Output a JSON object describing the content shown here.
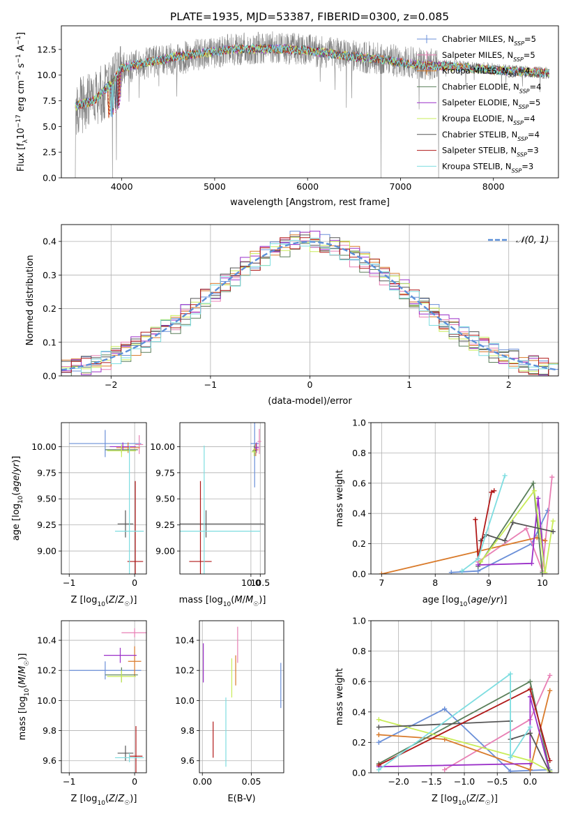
{
  "figure_title": "PLATE=1935, MJD=53387, FIBERID=0300, z=0.085",
  "colors": {
    "Chabrier MILES": "#6a8fd8",
    "Salpeter MILES": "#e87fb4",
    "Kroupa MILES": "#d97a2a",
    "Chabrier ELODIE": "#5a7f5a",
    "Salpeter ELODIE": "#9a2fc8",
    "Kroupa ELODIE": "#c9ec58",
    "Chabrier STELIB": "#555555",
    "Salpeter STELIB": "#b01818",
    "Kroupa STELIB": "#7ddde0",
    "spectrum": "#808080",
    "gaussian": "#5b8fd8",
    "grid": "#b0b0b0"
  },
  "legend": [
    {
      "model": "Chabrier MILES",
      "prefix": "Chabrier MILES, N",
      "sub": "SSP",
      "suffix": "=5"
    },
    {
      "model": "Salpeter MILES",
      "prefix": "Salpeter MILES, N",
      "sub": "SSP",
      "suffix": "=5"
    },
    {
      "model": "Kroupa MILES",
      "prefix": "Kroupa MILES, N",
      "sub": "SSP",
      "suffix": "=4"
    },
    {
      "model": "Chabrier ELODIE",
      "prefix": "Chabrier ELODIE, N",
      "sub": "SSP",
      "suffix": "=4"
    },
    {
      "model": "Salpeter ELODIE",
      "prefix": "Salpeter ELODIE, N",
      "sub": "SSP",
      "suffix": "=5"
    },
    {
      "model": "Kroupa ELODIE",
      "prefix": "Kroupa ELODIE, N",
      "sub": "SSP",
      "suffix": "=4"
    },
    {
      "model": "Chabrier STELIB",
      "prefix": "Chabrier STELIB, N",
      "sub": "SSP",
      "suffix": "=4"
    },
    {
      "model": "Salpeter STELIB",
      "prefix": "Salpeter STELIB, N",
      "sub": "SSP",
      "suffix": "=3"
    },
    {
      "model": "Kroupa STELIB",
      "prefix": "Kroupa STELIB, N",
      "sub": "SSP",
      "suffix": "=3"
    }
  ],
  "chart_data": [
    {
      "id": "spectrum",
      "type": "line",
      "xlabel": "wavelength [Angstrom, rest frame]",
      "ylabel": "Flux [f_λ10^-17 erg cm^-2 s^-1 A^-1]",
      "xlim": [
        3350,
        8700
      ],
      "ylim": [
        0,
        14.8
      ],
      "xticks": [
        4000,
        5000,
        6000,
        7000,
        8000
      ],
      "yticks": [
        0.0,
        2.5,
        5.0,
        7.5,
        10.0,
        12.5
      ],
      "grid": false,
      "legend_position": "top-right",
      "observed_flux_profile": {
        "x": [
          3500,
          3700,
          3900,
          4000,
          4300,
          4600,
          4900,
          5200,
          5600,
          6000,
          6400,
          6800,
          7200,
          7600,
          8000,
          8400,
          8600
        ],
        "y": [
          6.8,
          7.6,
          9.0,
          10.6,
          11.2,
          11.6,
          12.1,
          12.5,
          12.7,
          12.5,
          11.9,
          11.6,
          11.1,
          10.9,
          10.6,
          10.3,
          10.2
        ]
      },
      "model_flux_profile": {
        "x": [
          3500,
          3700,
          3900,
          4000,
          4300,
          4600,
          4900,
          5200,
          5600,
          6000,
          6400,
          6800,
          7200,
          7600,
          8000,
          8400,
          8600
        ],
        "y": [
          7.0,
          7.5,
          9.3,
          10.7,
          11.3,
          11.8,
          12.2,
          12.5,
          12.6,
          12.4,
          11.9,
          11.5,
          11.0,
          10.8,
          10.5,
          10.3,
          10.2
        ]
      },
      "bad_pixel_drops": [
        3500,
        3900,
        6790,
        7410
      ]
    },
    {
      "id": "residuals",
      "type": "histogram",
      "xlabel": "(data-model)/error",
      "ylabel": "Normed distribution",
      "xlim": [
        -2.5,
        2.5
      ],
      "ylim": [
        0,
        0.45
      ],
      "xticks": [
        -2,
        -1,
        0,
        1,
        2
      ],
      "yticks": [
        0.0,
        0.1,
        0.2,
        0.3,
        0.4
      ],
      "grid": true,
      "legend_position": "top-right",
      "reference_curve": {
        "label": "N(0,1)",
        "mu": 0,
        "sigma": 1
      },
      "bin_width": 0.1,
      "series": [
        {
          "model": "Chabrier MILES",
          "scale": 1.02,
          "noise_seed": 3
        },
        {
          "model": "Salpeter MILES",
          "scale": 0.98,
          "noise_seed": 7
        },
        {
          "model": "Kroupa MILES",
          "scale": 1.0,
          "noise_seed": 11
        },
        {
          "model": "Chabrier ELODIE",
          "scale": 0.97,
          "noise_seed": 13
        },
        {
          "model": "Salpeter ELODIE",
          "scale": 1.01,
          "noise_seed": 17
        },
        {
          "model": "Kroupa ELODIE",
          "scale": 0.99,
          "noise_seed": 19
        },
        {
          "model": "Chabrier STELIB",
          "scale": 1.0,
          "noise_seed": 23
        },
        {
          "model": "Salpeter STELIB",
          "scale": 0.99,
          "noise_seed": 29
        },
        {
          "model": "Kroupa STELIB",
          "scale": 0.98,
          "noise_seed": 31
        }
      ]
    },
    {
      "id": "age_vs_Z",
      "type": "errorbar",
      "xlabel": "Z [log10(Z/Z☉)]",
      "ylabel": "age  [log10(age/yr)]",
      "xlim": [
        -1.12,
        0.18
      ],
      "ylim": [
        8.78,
        10.23
      ],
      "xticks": [
        -1,
        0
      ],
      "yticks": [
        9.0,
        9.25,
        9.5,
        9.75,
        10.0
      ],
      "grid": true,
      "points": [
        {
          "model": "Chabrier MILES",
          "x": -0.45,
          "xerr": 0.55,
          "y": 10.03,
          "yerr": 0.13
        },
        {
          "model": "Salpeter MILES",
          "x": 0.07,
          "xerr": 0.06,
          "y": 10.02,
          "yerr": 0.09
        },
        {
          "model": "Kroupa MILES",
          "x": -0.1,
          "xerr": 0.18,
          "y": 9.99,
          "yerr": 0.05
        },
        {
          "model": "Chabrier ELODIE",
          "x": -0.2,
          "xerr": 0.25,
          "y": 9.97,
          "yerr": 0.03
        },
        {
          "model": "Salpeter ELODIE",
          "x": -0.18,
          "xerr": 0.2,
          "y": 10.0,
          "yerr": 0.04
        },
        {
          "model": "Kroupa ELODIE",
          "x": -0.2,
          "xerr": 0.22,
          "y": 9.96,
          "yerr": 0.06
        },
        {
          "model": "Chabrier STELIB",
          "x": -0.14,
          "xerr": 0.12,
          "y": 9.26,
          "yerr": 0.13
        },
        {
          "model": "Salpeter STELIB",
          "x": 0.01,
          "xerr": 0.12,
          "y": 8.9,
          "yerr": 0.77
        },
        {
          "model": "Kroupa STELIB",
          "x": -0.08,
          "xerr": 0.22,
          "y": 9.19,
          "yerr": 0.82
        }
      ]
    },
    {
      "id": "age_vs_mass",
      "type": "errorbar",
      "xlabel": "mass [log10(M/M☉)]",
      "ylabel": "",
      "xlim": [
        6.2,
        10.75
      ],
      "ylim": [
        8.78,
        10.23
      ],
      "xticks": [
        10.0,
        10.5
      ],
      "yticks": [
        9.0,
        9.25,
        9.5,
        9.75,
        10.0
      ],
      "grid": true,
      "points": [
        {
          "model": "Chabrier MILES",
          "x": 10.2,
          "xerr": 0.22,
          "y": 10.03,
          "yerr": 0.42
        },
        {
          "model": "Salpeter MILES",
          "x": 10.45,
          "xerr": 0.1,
          "y": 10.05,
          "yerr": 0.12
        },
        {
          "model": "Kroupa MILES",
          "x": 10.26,
          "xerr": 0.14,
          "y": 9.97,
          "yerr": 0.06
        },
        {
          "model": "Chabrier ELODIE",
          "x": 10.18,
          "xerr": 0.1,
          "y": 9.96,
          "yerr": 0.05
        },
        {
          "model": "Salpeter ELODIE",
          "x": 10.3,
          "xerr": 0.12,
          "y": 9.99,
          "yerr": 0.05
        },
        {
          "model": "Kroupa ELODIE",
          "x": 10.17,
          "xerr": 0.13,
          "y": 9.95,
          "yerr": 0.04
        },
        {
          "model": "Chabrier STELIB",
          "x": 7.6,
          "xerr": 3.1,
          "y": 9.26,
          "yerr": 0.13
        },
        {
          "model": "Salpeter STELIB",
          "x": 7.3,
          "xerr": 0.6,
          "y": 8.9,
          "yerr": 0.77
        },
        {
          "model": "Kroupa STELIB",
          "x": 7.5,
          "xerr": 3.0,
          "y": 9.19,
          "yerr": 0.82
        }
      ]
    },
    {
      "id": "weight_vs_age",
      "type": "line",
      "xlabel": "age  [log10(age/yr)]",
      "ylabel": "mass weight",
      "xlim": [
        6.8,
        10.3
      ],
      "ylim": [
        0,
        1
      ],
      "xticks": [
        7,
        8,
        9,
        10
      ],
      "yticks": [
        0.0,
        0.2,
        0.4,
        0.6,
        0.8,
        1.0
      ],
      "grid": true,
      "series": [
        {
          "model": "Chabrier MILES",
          "points": [
            [
              8.3,
              0.01
            ],
            [
              8.8,
              0.02
            ],
            [
              9.8,
              0.2
            ],
            [
              10.1,
              0.42
            ]
          ]
        },
        {
          "model": "Salpeter MILES",
          "points": [
            [
              8.8,
              0.08
            ],
            [
              9.7,
              0.3
            ],
            [
              10.0,
              0.02
            ],
            [
              10.18,
              0.64
            ]
          ]
        },
        {
          "model": "Kroupa MILES",
          "points": [
            [
              7.0,
              0.0
            ],
            [
              8.8,
              0.15
            ],
            [
              9.9,
              0.24
            ],
            [
              10.05,
              0.22
            ]
          ]
        },
        {
          "model": "Chabrier ELODIE",
          "points": [
            [
              8.8,
              0.05
            ],
            [
              9.83,
              0.6
            ],
            [
              10.0,
              0.01
            ]
          ]
        },
        {
          "model": "Salpeter ELODIE",
          "points": [
            [
              8.8,
              0.06
            ],
            [
              9.8,
              0.07
            ],
            [
              9.92,
              0.5
            ],
            [
              10.05,
              0.0
            ]
          ]
        },
        {
          "model": "Kroupa ELODIE",
          "points": [
            [
              8.85,
              0.08
            ],
            [
              9.85,
              0.55
            ],
            [
              10.05,
              0.01
            ],
            [
              10.2,
              0.35
            ]
          ]
        },
        {
          "model": "Chabrier STELIB",
          "points": [
            [
              8.85,
              0.22
            ],
            [
              8.95,
              0.26
            ],
            [
              9.3,
              0.22
            ],
            [
              9.45,
              0.34
            ],
            [
              10.2,
              0.28
            ]
          ]
        },
        {
          "model": "Salpeter STELIB",
          "points": [
            [
              8.75,
              0.36
            ],
            [
              8.8,
              0.1
            ],
            [
              9.05,
              0.54
            ],
            [
              9.1,
              0.55
            ]
          ]
        },
        {
          "model": "Kroupa STELIB",
          "points": [
            [
              8.5,
              0.02
            ],
            [
              8.8,
              0.1
            ],
            [
              9.3,
              0.65
            ]
          ]
        }
      ]
    },
    {
      "id": "mass_vs_Z",
      "type": "errorbar",
      "xlabel": "Z [log10(Z/Z☉)]",
      "ylabel": "mass [log10(M/M☉)]",
      "xlim": [
        -1.12,
        0.18
      ],
      "ylim": [
        9.52,
        10.53
      ],
      "xticks": [
        -1,
        0
      ],
      "yticks": [
        9.6,
        9.8,
        10.0,
        10.2,
        10.4
      ],
      "grid": true,
      "points": [
        {
          "model": "Chabrier MILES",
          "x": -0.45,
          "xerr": 0.55,
          "y": 10.2,
          "yerr": 0.06
        },
        {
          "model": "Salpeter MILES",
          "x": 0.0,
          "xerr": 0.2,
          "y": 10.45,
          "yerr": 0.03
        },
        {
          "model": "Kroupa MILES",
          "x": 0.0,
          "xerr": 0.1,
          "y": 10.26,
          "yerr": 0.1
        },
        {
          "model": "Chabrier ELODIE",
          "x": -0.2,
          "xerr": 0.25,
          "y": 10.17,
          "yerr": 0.05
        },
        {
          "model": "Salpeter ELODIE",
          "x": -0.22,
          "xerr": 0.25,
          "y": 10.3,
          "yerr": 0.05
        },
        {
          "model": "Kroupa ELODIE",
          "x": -0.2,
          "xerr": 0.22,
          "y": 10.16,
          "yerr": 0.04
        },
        {
          "model": "Chabrier STELIB",
          "x": -0.14,
          "xerr": 0.12,
          "y": 9.65,
          "yerr": 0.05
        },
        {
          "model": "Salpeter STELIB",
          "x": 0.02,
          "xerr": 0.1,
          "y": 9.63,
          "yerr": 0.2
        },
        {
          "model": "Kroupa STELIB",
          "x": -0.08,
          "xerr": 0.22,
          "y": 9.62,
          "yerr": 0.03
        }
      ]
    },
    {
      "id": "mass_vs_EBV",
      "type": "errorbar",
      "xlabel": "E(B-V)",
      "ylabel": "",
      "xlim": [
        -0.003,
        0.083
      ],
      "ylim": [
        9.52,
        10.53
      ],
      "xticks": [
        0.0,
        0.05
      ],
      "yticks": [
        9.6,
        9.8,
        10.0,
        10.2,
        10.4
      ],
      "grid": true,
      "points": [
        {
          "model": "Chabrier MILES",
          "x": 0.08,
          "xerr": 0,
          "y": 10.1,
          "yerr": 0.15
        },
        {
          "model": "Salpeter MILES",
          "x": 0.036,
          "xerr": 0,
          "y": 10.37,
          "yerr": 0.12
        },
        {
          "model": "Kroupa MILES",
          "x": 0.034,
          "xerr": 0,
          "y": 10.2,
          "yerr": 0.1
        },
        {
          "model": "Salpeter ELODIE",
          "x": 0.001,
          "xerr": 0,
          "y": 10.25,
          "yerr": 0.13
        },
        {
          "model": "Kroupa ELODIE",
          "x": 0.03,
          "xerr": 0,
          "y": 10.15,
          "yerr": 0.13
        },
        {
          "model": "Salpeter STELIB",
          "x": 0.011,
          "xerr": 0,
          "y": 9.74,
          "yerr": 0.12
        },
        {
          "model": "Kroupa STELIB",
          "x": 0.024,
          "xerr": 0,
          "y": 9.79,
          "yerr": 0.23
        }
      ]
    },
    {
      "id": "weight_vs_Z",
      "type": "line",
      "xlabel": "Z [log10(Z/Z☉)]",
      "ylabel": "mass weight",
      "xlim": [
        -2.42,
        0.43
      ],
      "ylim": [
        0,
        1
      ],
      "xticks": [
        -2.0,
        -1.5,
        -1.0,
        -0.5,
        0.0
      ],
      "yticks": [
        0.0,
        0.2,
        0.4,
        0.6,
        0.8,
        1.0
      ],
      "grid": true,
      "series": [
        {
          "model": "Chabrier MILES",
          "points": [
            [
              -2.3,
              0.2
            ],
            [
              -1.3,
              0.42
            ],
            [
              -0.3,
              0.01
            ],
            [
              0.3,
              0.02
            ]
          ]
        },
        {
          "model": "Salpeter MILES",
          "points": [
            [
              -1.3,
              0.02
            ],
            [
              0.0,
              0.35
            ],
            [
              0.3,
              0.64
            ]
          ]
        },
        {
          "model": "Kroupa MILES",
          "points": [
            [
              -2.3,
              0.25
            ],
            [
              -1.3,
              0.22
            ],
            [
              0.0,
              0.02
            ],
            [
              0.3,
              0.54
            ]
          ]
        },
        {
          "model": "Chabrier ELODIE",
          "points": [
            [
              -2.3,
              0.06
            ],
            [
              0.0,
              0.6
            ],
            [
              0.3,
              0.01
            ]
          ]
        },
        {
          "model": "Salpeter ELODIE",
          "points": [
            [
              -2.3,
              0.04
            ],
            [
              0.0,
              0.06
            ],
            [
              0.0,
              0.5
            ],
            [
              0.3,
              0.0
            ]
          ]
        },
        {
          "model": "Kroupa ELODIE",
          "points": [
            [
              -2.3,
              0.35
            ],
            [
              0.0,
              0.08
            ],
            [
              0.3,
              0.01
            ]
          ]
        },
        {
          "model": "Chabrier STELIB",
          "points": [
            [
              -2.3,
              0.3
            ],
            [
              -0.3,
              0.34
            ],
            [
              -0.3,
              0.22
            ],
            [
              0.0,
              0.26
            ],
            [
              0.3,
              0.0
            ]
          ]
        },
        {
          "model": "Salpeter STELIB",
          "points": [
            [
              -2.3,
              0.05
            ],
            [
              0.0,
              0.55
            ],
            [
              0.3,
              0.08
            ]
          ]
        },
        {
          "model": "Kroupa STELIB",
          "points": [
            [
              -2.3,
              0.02
            ],
            [
              -0.3,
              0.65
            ],
            [
              -0.3,
              0.1
            ],
            [
              0.0,
              0.3
            ]
          ]
        }
      ]
    }
  ]
}
